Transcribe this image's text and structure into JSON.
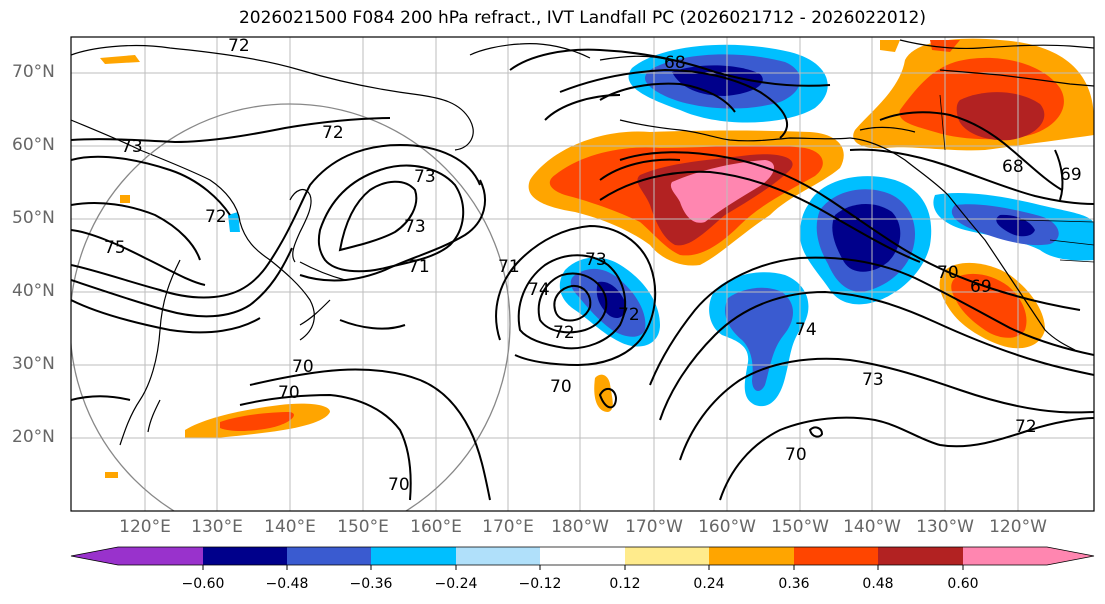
{
  "title": "2026021500 F084 200 hPa refract., IVT Landfall PC (2026021712 - 2026022012)",
  "lat_labels": [
    "70°N",
    "60°N",
    "50°N",
    "40°N",
    "30°N",
    "20°N"
  ],
  "lon_labels": [
    "120°E",
    "130°E",
    "140°E",
    "150°E",
    "160°E",
    "170°E",
    "180°W",
    "170°W",
    "160°W",
    "150°W",
    "140°W",
    "130°W",
    "120°W"
  ],
  "contour_labels": [
    "72",
    "73",
    "72",
    "73",
    "75",
    "73",
    "71",
    "72",
    "70",
    "70",
    "70",
    "68",
    "73",
    "72",
    "71",
    "74",
    "72",
    "70",
    "70",
    "74",
    "73",
    "72",
    "70",
    "69",
    "68",
    "69"
  ],
  "colorbar": {
    "colors": [
      "#9932cc",
      "#00008b",
      "#3a5bd0",
      "#00bfff",
      "#b0e0fa",
      "#ffffff",
      "#ffeb8c",
      "#ffa500",
      "#ff4500",
      "#b22222",
      "#ff86b0"
    ],
    "tick_labels": [
      "−0.60",
      "−0.48",
      "−0.36",
      "−0.24",
      "−0.12",
      "0.12",
      "0.24",
      "0.36",
      "0.48",
      "0.60"
    ]
  }
}
